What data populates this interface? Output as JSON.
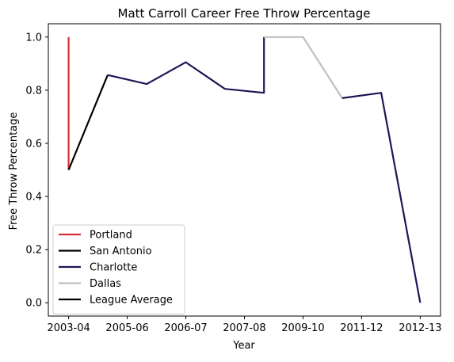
{
  "chart_data": {
    "type": "line",
    "title": "Matt Carroll  Career Free Throw Percentage",
    "xlabel": "Year",
    "ylabel": "Free Throw Percentage",
    "x_tick_labels": [
      "2003-04",
      "2005-06",
      "2006-07",
      "2007-08",
      "2009-10",
      "2011-12",
      "2012-13"
    ],
    "x_tick_index": [
      0,
      1,
      2,
      3,
      4,
      5,
      6
    ],
    "xlim": [
      -0.52,
      9.52
    ],
    "ylim": [
      -0.05,
      1.05
    ],
    "y_ticks": [
      0.0,
      0.2,
      0.4,
      0.6,
      0.8,
      1.0
    ],
    "y_tick_labels": [
      "0.0",
      "0.2",
      "0.4",
      "0.6",
      "0.8",
      "1.0"
    ],
    "legend_position": "lower-left",
    "grid": false,
    "series": [
      {
        "name": "Portland",
        "color": "#d62f3a",
        "points": [
          [
            0,
            1.0
          ],
          [
            0,
            0.5
          ]
        ]
      },
      {
        "name": "San Antonio",
        "color": "#000000",
        "points": [
          [
            0,
            0.5
          ],
          [
            1,
            0.857
          ]
        ]
      },
      {
        "name": "Charlotte",
        "color": "#1f1656",
        "points": [
          [
            1,
            0.857
          ],
          [
            2,
            0.823
          ],
          [
            3,
            0.905
          ],
          [
            4,
            0.805
          ],
          [
            5,
            0.79
          ],
          [
            5,
            1.0
          ]
        ]
      },
      {
        "name": "Dallas",
        "color": "#bfbfbf",
        "points": [
          [
            5,
            1.0
          ],
          [
            6,
            1.0
          ],
          [
            7,
            0.77
          ]
        ]
      },
      {
        "name": "Charlotte",
        "color": "#1f1656",
        "legend": false,
        "points": [
          [
            7,
            0.77
          ],
          [
            8,
            0.79
          ],
          [
            9,
            0.0
          ]
        ]
      },
      {
        "name": "League Average",
        "color": "#000000",
        "points": []
      }
    ]
  }
}
